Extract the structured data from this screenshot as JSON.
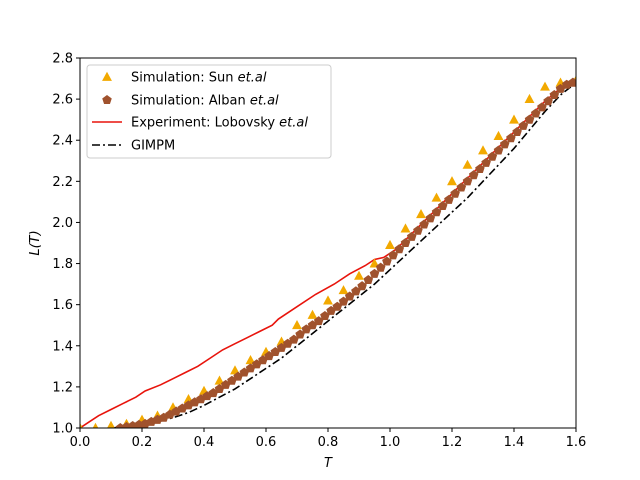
{
  "chart_data": {
    "type": "scatter",
    "title": "",
    "xlabel": "T",
    "ylabel": "L(T)",
    "xlim": [
      0.0,
      1.6
    ],
    "ylim": [
      1.0,
      2.8
    ],
    "xticks": [
      "0.0",
      "0.2",
      "0.4",
      "0.6",
      "0.8",
      "1.0",
      "1.2",
      "1.4",
      "1.6"
    ],
    "yticks": [
      "1.0",
      "1.2",
      "1.4",
      "1.6",
      "1.8",
      "2.0",
      "2.2",
      "2.4",
      "2.6",
      "2.8"
    ],
    "grid": false,
    "legend_position": "upper-left",
    "series": [
      {
        "name": "Simulation: Sun et.al",
        "name_prefix": "Simulation: Sun ",
        "name_italic": "et.al",
        "kind": "markers",
        "marker": "triangle",
        "color": "#f2a900",
        "x": [
          0.0,
          0.05,
          0.1,
          0.15,
          0.2,
          0.25,
          0.3,
          0.35,
          0.4,
          0.45,
          0.5,
          0.55,
          0.6,
          0.65,
          0.7,
          0.75,
          0.8,
          0.85,
          0.9,
          0.95,
          1.0,
          1.05,
          1.1,
          1.15,
          1.2,
          1.25,
          1.3,
          1.35,
          1.4,
          1.45,
          1.5,
          1.55,
          1.6
        ],
        "y": [
          1.0,
          1.0,
          1.01,
          1.02,
          1.04,
          1.06,
          1.1,
          1.14,
          1.18,
          1.23,
          1.28,
          1.33,
          1.37,
          1.42,
          1.5,
          1.55,
          1.62,
          1.67,
          1.74,
          1.8,
          1.89,
          1.97,
          2.04,
          2.12,
          2.2,
          2.28,
          2.35,
          2.42,
          2.5,
          2.6,
          2.66,
          2.68,
          2.69
        ]
      },
      {
        "name": "Simulation: Alban et.al",
        "name_prefix": "Simulation: Alban ",
        "name_italic": "et.al",
        "kind": "markers",
        "marker": "pentagon",
        "color": "#a0522d",
        "x": [
          0.13,
          0.15,
          0.17,
          0.19,
          0.21,
          0.23,
          0.25,
          0.27,
          0.29,
          0.31,
          0.33,
          0.35,
          0.37,
          0.39,
          0.41,
          0.43,
          0.45,
          0.47,
          0.49,
          0.51,
          0.53,
          0.55,
          0.57,
          0.59,
          0.61,
          0.63,
          0.65,
          0.67,
          0.69,
          0.71,
          0.73,
          0.75,
          0.77,
          0.79,
          0.81,
          0.83,
          0.85,
          0.87,
          0.89,
          0.91,
          0.93,
          0.95,
          0.97,
          0.99,
          1.01,
          1.03,
          1.05,
          1.07,
          1.09,
          1.11,
          1.13,
          1.15,
          1.17,
          1.19,
          1.21,
          1.23,
          1.25,
          1.27,
          1.29,
          1.31,
          1.33,
          1.35,
          1.37,
          1.39,
          1.41,
          1.43,
          1.45,
          1.47,
          1.49,
          1.51,
          1.53,
          1.55,
          1.57,
          1.59
        ],
        "y": [
          1.0,
          1.005,
          1.01,
          1.015,
          1.02,
          1.03,
          1.04,
          1.05,
          1.065,
          1.08,
          1.095,
          1.11,
          1.125,
          1.14,
          1.155,
          1.17,
          1.19,
          1.21,
          1.23,
          1.25,
          1.27,
          1.29,
          1.31,
          1.33,
          1.35,
          1.37,
          1.39,
          1.41,
          1.43,
          1.455,
          1.48,
          1.5,
          1.52,
          1.545,
          1.57,
          1.59,
          1.615,
          1.64,
          1.665,
          1.69,
          1.72,
          1.75,
          1.78,
          1.81,
          1.84,
          1.87,
          1.9,
          1.93,
          1.96,
          1.99,
          2.02,
          2.05,
          2.08,
          2.11,
          2.14,
          2.17,
          2.2,
          2.23,
          2.26,
          2.29,
          2.32,
          2.35,
          2.38,
          2.41,
          2.44,
          2.47,
          2.5,
          2.53,
          2.56,
          2.59,
          2.62,
          2.65,
          2.67,
          2.68
        ]
      },
      {
        "name": "Experiment: Lobovsky et.al",
        "name_prefix": "Experiment: Lobovsky ",
        "name_italic": "et.al",
        "kind": "line",
        "dash": "solid",
        "color": "#e8140c",
        "x": [
          0.0,
          0.03,
          0.06,
          0.1,
          0.14,
          0.18,
          0.21,
          0.26,
          0.3,
          0.34,
          0.38,
          0.42,
          0.46,
          0.5,
          0.54,
          0.58,
          0.62,
          0.64,
          0.7,
          0.76,
          0.82,
          0.87,
          0.92,
          0.95,
          0.98,
          1.02,
          1.06,
          1.1,
          1.14,
          1.18,
          1.22,
          1.26,
          1.3,
          1.34,
          1.38,
          1.42,
          1.46,
          1.5,
          1.54,
          1.58,
          1.6
        ],
        "y": [
          1.0,
          1.03,
          1.06,
          1.09,
          1.12,
          1.15,
          1.18,
          1.21,
          1.24,
          1.27,
          1.3,
          1.34,
          1.38,
          1.41,
          1.44,
          1.47,
          1.5,
          1.53,
          1.59,
          1.65,
          1.7,
          1.75,
          1.79,
          1.82,
          1.83,
          1.87,
          1.93,
          1.99,
          2.05,
          2.11,
          2.17,
          2.23,
          2.29,
          2.35,
          2.41,
          2.47,
          2.53,
          2.59,
          2.64,
          2.68,
          2.7
        ]
      },
      {
        "name": "GIMPM",
        "kind": "line",
        "dash": "dashdot",
        "color": "#000000",
        "x": [
          0.0,
          0.05,
          0.1,
          0.15,
          0.2,
          0.25,
          0.3,
          0.35,
          0.4,
          0.45,
          0.5,
          0.55,
          0.6,
          0.65,
          0.7,
          0.75,
          0.8,
          0.85,
          0.9,
          0.95,
          1.0,
          1.05,
          1.1,
          1.15,
          1.2,
          1.25,
          1.3,
          1.35,
          1.4,
          1.45,
          1.5,
          1.55,
          1.6
        ],
        "y": [
          0.99,
          0.99,
          1.0,
          1.005,
          1.015,
          1.03,
          1.05,
          1.075,
          1.11,
          1.15,
          1.19,
          1.24,
          1.29,
          1.34,
          1.4,
          1.46,
          1.52,
          1.58,
          1.64,
          1.7,
          1.77,
          1.84,
          1.91,
          1.98,
          2.05,
          2.12,
          2.2,
          2.28,
          2.36,
          2.45,
          2.54,
          2.62,
          2.68
        ]
      }
    ]
  }
}
